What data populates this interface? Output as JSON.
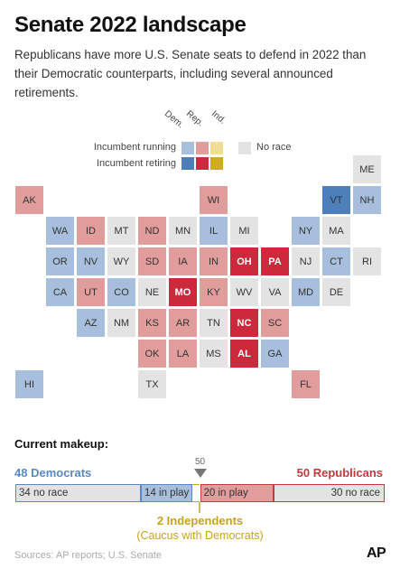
{
  "title": "Senate 2022 landscape",
  "subtitle": "Republicans have more U.S. Senate seats to defend in 2022 than their Democratic counterparts, including several announced retirements.",
  "legend": {
    "parties": [
      "Dem.",
      "Rep.",
      "Ind."
    ],
    "incumbent_running": "Incumbent running",
    "incumbent_retiring": "Incumbent retiring",
    "no_race": "No race"
  },
  "colors": {
    "dem_running": "#a7bfdc",
    "rep_running": "#e09d9b",
    "ind_running": "#f0dc92",
    "dem_retiring": "#4d7fb8",
    "rep_retiring": "#cc2a3c",
    "ind_retiring": "#d0ab22",
    "no_race": "#e3e3e3",
    "dem_text": "#5b88bf",
    "rep_text": "#c23a40",
    "ind_text": "#c8a21a"
  },
  "chart_data": [
    {
      "type": "table",
      "categories": [
        "dem_running",
        "rep_running",
        "rep_retiring",
        "no_race"
      ],
      "states": [
        {
          "abbr": "ME",
          "status": "no_race",
          "col": 11,
          "row": 0
        },
        {
          "abbr": "AK",
          "status": "rep_running",
          "col": 0,
          "row": 1
        },
        {
          "abbr": "WI",
          "status": "rep_running",
          "col": 6,
          "row": 1
        },
        {
          "abbr": "VT",
          "status": "dem_retiring",
          "col": 10,
          "row": 1
        },
        {
          "abbr": "NH",
          "status": "dem_running",
          "col": 11,
          "row": 1
        },
        {
          "abbr": "WA",
          "status": "dem_running",
          "col": 1,
          "row": 2
        },
        {
          "abbr": "ID",
          "status": "rep_running",
          "col": 2,
          "row": 2
        },
        {
          "abbr": "MT",
          "status": "no_race",
          "col": 3,
          "row": 2
        },
        {
          "abbr": "ND",
          "status": "rep_running",
          "col": 4,
          "row": 2
        },
        {
          "abbr": "MN",
          "status": "no_race",
          "col": 5,
          "row": 2
        },
        {
          "abbr": "IL",
          "status": "dem_running",
          "col": 6,
          "row": 2
        },
        {
          "abbr": "MI",
          "status": "no_race",
          "col": 7,
          "row": 2
        },
        {
          "abbr": "NY",
          "status": "dem_running",
          "col": 9,
          "row": 2
        },
        {
          "abbr": "MA",
          "status": "no_race",
          "col": 10,
          "row": 2
        },
        {
          "abbr": "OR",
          "status": "dem_running",
          "col": 1,
          "row": 3
        },
        {
          "abbr": "NV",
          "status": "dem_running",
          "col": 2,
          "row": 3
        },
        {
          "abbr": "WY",
          "status": "no_race",
          "col": 3,
          "row": 3
        },
        {
          "abbr": "SD",
          "status": "rep_running",
          "col": 4,
          "row": 3
        },
        {
          "abbr": "IA",
          "status": "rep_running",
          "col": 5,
          "row": 3
        },
        {
          "abbr": "IN",
          "status": "rep_running",
          "col": 6,
          "row": 3
        },
        {
          "abbr": "OH",
          "status": "rep_retiring",
          "col": 7,
          "row": 3
        },
        {
          "abbr": "PA",
          "status": "rep_retiring",
          "col": 8,
          "row": 3
        },
        {
          "abbr": "NJ",
          "status": "no_race",
          "col": 9,
          "row": 3
        },
        {
          "abbr": "CT",
          "status": "dem_running",
          "col": 10,
          "row": 3
        },
        {
          "abbr": "RI",
          "status": "no_race",
          "col": 11,
          "row": 3
        },
        {
          "abbr": "CA",
          "status": "dem_running",
          "col": 1,
          "row": 4
        },
        {
          "abbr": "UT",
          "status": "rep_running",
          "col": 2,
          "row": 4
        },
        {
          "abbr": "CO",
          "status": "dem_running",
          "col": 3,
          "row": 4
        },
        {
          "abbr": "NE",
          "status": "no_race",
          "col": 4,
          "row": 4
        },
        {
          "abbr": "MO",
          "status": "rep_retiring",
          "col": 5,
          "row": 4
        },
        {
          "abbr": "KY",
          "status": "rep_running",
          "col": 6,
          "row": 4
        },
        {
          "abbr": "WV",
          "status": "no_race",
          "col": 7,
          "row": 4
        },
        {
          "abbr": "VA",
          "status": "no_race",
          "col": 8,
          "row": 4
        },
        {
          "abbr": "MD",
          "status": "dem_running",
          "col": 9,
          "row": 4
        },
        {
          "abbr": "DE",
          "status": "no_race",
          "col": 10,
          "row": 4
        },
        {
          "abbr": "AZ",
          "status": "dem_running",
          "col": 2,
          "row": 5
        },
        {
          "abbr": "NM",
          "status": "no_race",
          "col": 3,
          "row": 5
        },
        {
          "abbr": "KS",
          "status": "rep_running",
          "col": 4,
          "row": 5
        },
        {
          "abbr": "AR",
          "status": "rep_running",
          "col": 5,
          "row": 5
        },
        {
          "abbr": "TN",
          "status": "no_race",
          "col": 6,
          "row": 5
        },
        {
          "abbr": "NC",
          "status": "rep_retiring",
          "col": 7,
          "row": 5
        },
        {
          "abbr": "SC",
          "status": "rep_running",
          "col": 8,
          "row": 5
        },
        {
          "abbr": "OK",
          "status": "rep_running",
          "col": 4,
          "row": 6
        },
        {
          "abbr": "LA",
          "status": "rep_running",
          "col": 5,
          "row": 6
        },
        {
          "abbr": "MS",
          "status": "no_race",
          "col": 6,
          "row": 6
        },
        {
          "abbr": "AL",
          "status": "rep_retiring",
          "col": 7,
          "row": 6
        },
        {
          "abbr": "GA",
          "status": "dem_running",
          "col": 8,
          "row": 6
        },
        {
          "abbr": "HI",
          "status": "dem_running",
          "col": 0,
          "row": 7
        },
        {
          "abbr": "TX",
          "status": "no_race",
          "col": 4,
          "row": 7
        },
        {
          "abbr": "FL",
          "status": "rep_running",
          "col": 9,
          "row": 7
        }
      ]
    },
    {
      "type": "bar",
      "title": "Current makeup:",
      "total": 100,
      "marker_value": 50,
      "marker_label": "50",
      "dem_label": "48 Democrats",
      "rep_label": "50 Republicans",
      "segments": [
        {
          "label": "34 no race",
          "value": 34,
          "party": "dem",
          "in_play": false
        },
        {
          "label": "14 in play",
          "value": 14,
          "party": "dem",
          "in_play": true
        },
        {
          "label": "",
          "value": 2,
          "party": "ind",
          "in_play": false
        },
        {
          "label": "20 in play",
          "value": 20,
          "party": "rep",
          "in_play": true
        },
        {
          "label": "30 no race",
          "value": 30,
          "party": "rep",
          "in_play": false
        }
      ],
      "independents_label": "2 Independents",
      "independents_note": "(Caucus with Democrats)"
    }
  ],
  "source": "Sources: AP reports; U.S. Senate",
  "logo": "AP"
}
